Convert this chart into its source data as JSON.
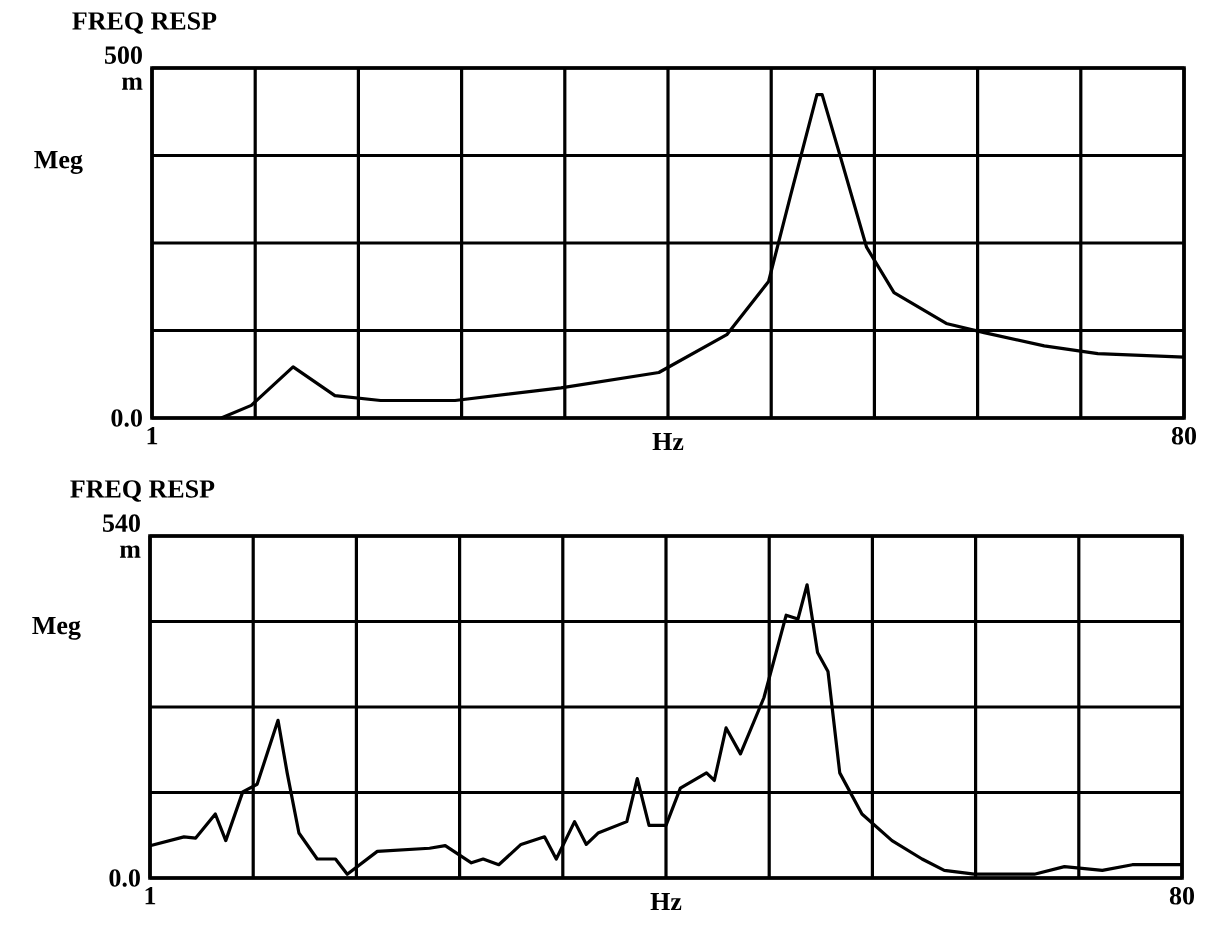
{
  "chart_data": [
    {
      "type": "line",
      "title": "FREQ  RESP",
      "xlabel": "Hz",
      "ylabel": "Meg",
      "xlim": [
        1,
        80
      ],
      "xticks": [
        1,
        80
      ],
      "ylim": [
        0,
        500
      ],
      "yticks": [
        {
          "value": 0,
          "label": "0.0"
        },
        {
          "value": 500,
          "label": "500 m"
        }
      ],
      "grid": true,
      "series": [
        {
          "color": "#000000",
          "x": [
            6.3,
            8.6,
            11.8,
            15.0,
            18.5,
            24.2,
            32.3,
            39.8,
            45.0,
            48.2,
            49.9,
            51.9,
            52.3,
            53.7,
            55.7,
            57.8,
            61.8,
            64.7,
            69.3,
            73.4,
            80
          ],
          "values": [
            0,
            18,
            73,
            32,
            25,
            25,
            43,
            65,
            119,
            195,
            319,
            462,
            462,
            373,
            244,
            179,
            135,
            122,
            103,
            92,
            87
          ]
        }
      ]
    },
    {
      "type": "line",
      "title": "FREQ RESP",
      "xlabel": "Hz",
      "ylabel": "Meg",
      "xlim": [
        1,
        80
      ],
      "xticks": [
        1,
        80
      ],
      "ylim": [
        0,
        540
      ],
      "yticks": [
        {
          "value": 0,
          "label": "0.0"
        },
        {
          "value": 540,
          "label": "540 m"
        }
      ],
      "grid": true,
      "series": [
        {
          "color": "#000000",
          "x": [
            1,
            3.6,
            4.5,
            6.0,
            6.8,
            8.1,
            9.2,
            10.8,
            11.5,
            12.4,
            13.8,
            15.2,
            16.1,
            18.4,
            22.4,
            23.6,
            24.7,
            25.6,
            26.5,
            27.7,
            29.4,
            31.2,
            32.1,
            33.5,
            34.4,
            35.3,
            37.5,
            38.3,
            39.2,
            40.5,
            41.6,
            43.6,
            44.2,
            45.1,
            46.2,
            48.0,
            49.7,
            50.6,
            51.3,
            52.1,
            52.9,
            53.8,
            55.5,
            57.8,
            60.1,
            61.8,
            64.1,
            68.7,
            71.0,
            73.9,
            76.2,
            80
          ],
          "values": [
            51,
            65,
            63,
            101,
            59,
            136,
            148,
            249,
            166,
            71,
            30,
            30,
            6,
            42,
            47,
            51,
            36,
            24,
            30,
            21,
            53,
            65,
            30,
            89,
            53,
            71,
            89,
            157,
            83,
            83,
            142,
            166,
            154,
            237,
            196,
            285,
            415,
            409,
            463,
            356,
            326,
            166,
            101,
            59,
            30,
            12,
            6,
            6,
            18,
            12,
            21,
            21
          ]
        }
      ]
    }
  ]
}
